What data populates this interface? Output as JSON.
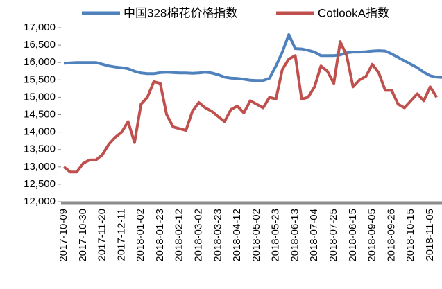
{
  "chart_data": {
    "type": "line",
    "categories": [
      "2017-10-09",
      null,
      null,
      "2017-10-30",
      null,
      null,
      "2017-11-20",
      null,
      null,
      "2017-12-11",
      null,
      null,
      "2018-01-02",
      null,
      null,
      "2018-01-23",
      null,
      null,
      "2018-02-12",
      null,
      null,
      "2018-03-02",
      null,
      null,
      "2018-03-23",
      null,
      null,
      "2018-04-12",
      null,
      null,
      "2018-05-02",
      null,
      null,
      "2018-05-23",
      null,
      null,
      "2018-06-13",
      null,
      null,
      "2018-07-04",
      null,
      null,
      "2018-07-25",
      null,
      null,
      "2018-08-15",
      null,
      null,
      "2018-09-05",
      null,
      null,
      "2018-09-26",
      null,
      null,
      "2018-10-15",
      null,
      null,
      "2018-11-05",
      null,
      null
    ],
    "series": [
      {
        "name": "中国328棉花价格指数",
        "color": "#4f81bd",
        "values": [
          15980,
          15990,
          16000,
          16000,
          16000,
          16000,
          15950,
          15900,
          15870,
          15850,
          15820,
          15750,
          15700,
          15680,
          15680,
          15710,
          15720,
          15710,
          15700,
          15700,
          15690,
          15700,
          15720,
          15700,
          15650,
          15580,
          15550,
          15540,
          15520,
          15490,
          15480,
          15480,
          15550,
          15900,
          16300,
          16800,
          16400,
          16390,
          16350,
          16300,
          16200,
          16200,
          16200,
          16220,
          16280,
          16300,
          16300,
          16310,
          16330,
          16340,
          16330,
          16250,
          16150,
          16050,
          15950,
          15850,
          15720,
          15620,
          15580,
          15570
        ]
      },
      {
        "name": "CotlookA指数",
        "color": "#c0504d",
        "values": [
          13000,
          12850,
          12850,
          13100,
          13200,
          13200,
          13350,
          13650,
          13850,
          14000,
          14300,
          13700,
          14800,
          15000,
          15450,
          15400,
          14500,
          14150,
          14100,
          14050,
          14600,
          14850,
          14700,
          14600,
          14450,
          14300,
          14650,
          14750,
          14550,
          14900,
          14800,
          14700,
          15000,
          14950,
          15800,
          16100,
          16200,
          14950,
          15000,
          15300,
          15900,
          15750,
          15400,
          16600,
          16200,
          15300,
          15500,
          15600,
          15950,
          15700,
          15200,
          15200,
          14800,
          14700,
          14900,
          15100,
          14900,
          15300,
          15000,
          null
        ]
      }
    ],
    "ylim": [
      12000,
      17000
    ],
    "yticks": [
      {
        "value": 12000,
        "label": "12,000"
      },
      {
        "value": 12500,
        "label": "12,500"
      },
      {
        "value": 13000,
        "label": "13,000"
      },
      {
        "value": 13500,
        "label": "13,500"
      },
      {
        "value": 14000,
        "label": "14,000"
      },
      {
        "value": 14500,
        "label": "14,500"
      },
      {
        "value": 15000,
        "label": "15,000"
      },
      {
        "value": 15500,
        "label": "15,500"
      },
      {
        "value": 16000,
        "label": "16,000"
      },
      {
        "value": 16500,
        "label": "16,500"
      },
      {
        "value": 17000,
        "label": "17,000"
      }
    ],
    "legend": "top"
  }
}
